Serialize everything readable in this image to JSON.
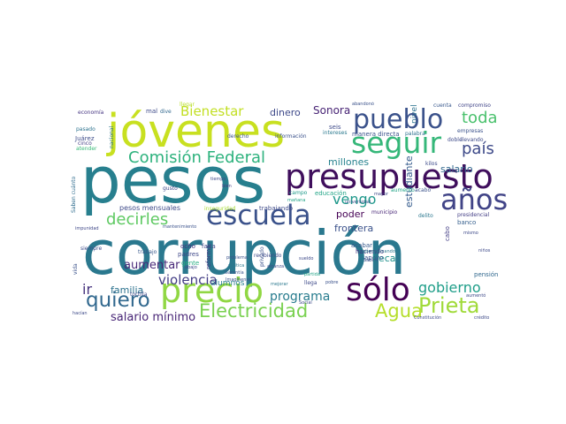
{
  "words": [
    {
      "text": "corrupción",
      "color": "#2a788e"
    },
    {
      "text": "pesos",
      "color": "#277f8e"
    },
    {
      "text": "jóvenes",
      "color": "#c8e020"
    },
    {
      "text": "presupuesto",
      "color": "#3f0e5c"
    },
    {
      "text": "precio",
      "color": "#90d743"
    },
    {
      "text": "pueblo",
      "color": "#3b528b"
    },
    {
      "text": "seguir",
      "color": "#35b779"
    },
    {
      "text": "escuela",
      "color": "#3b528b"
    },
    {
      "text": "años",
      "color": "#414487"
    },
    {
      "text": "sólo",
      "color": "#440154"
    },
    {
      "text": "quiero",
      "color": "#31688e"
    },
    {
      "text": "Prieta",
      "color": "#a0da39"
    },
    {
      "text": "Comisión Federal",
      "color": "#2db27d"
    },
    {
      "text": "Electricidad",
      "color": "#7ad151"
    },
    {
      "text": "Agua",
      "color": "#b5de2b"
    },
    {
      "text": "Bienestar",
      "color": "#c2df23"
    },
    {
      "text": "gobierno",
      "color": "#1f9e89"
    },
    {
      "text": "toda",
      "color": "#4ac16d"
    },
    {
      "text": "país",
      "color": "#3e4a89"
    },
    {
      "text": "decirles",
      "color": "#5ec962"
    },
    {
      "text": "vengo",
      "color": "#1f988b"
    },
    {
      "text": "violencia",
      "color": "#433e85"
    },
    {
      "text": "programa",
      "color": "#287c8e"
    },
    {
      "text": "ir",
      "color": "#46337e"
    },
    {
      "text": "familia",
      "color": "#2c728e"
    },
    {
      "text": "aumentar",
      "color": "#482878"
    },
    {
      "text": "salario mínimo",
      "color": "#482576"
    },
    {
      "text": "dinero",
      "color": "#3e4989"
    },
    {
      "text": "Sonora",
      "color": "#482475"
    },
    {
      "text": "salario",
      "color": "#31688e"
    },
    {
      "text": "millones",
      "color": "#26828e"
    },
    {
      "text": "frontera",
      "color": "#3b528b"
    },
    {
      "text": "poder",
      "color": "#440154"
    },
    {
      "text": "beca",
      "color": "#21918c"
    },
    {
      "text": "estudiante",
      "color": "#365c8d"
    },
    {
      "text": "pesos mensuales",
      "color": "#3e4a89"
    },
    {
      "text": "alumnos",
      "color": "#277f8e"
    },
    {
      "text": "manera directa",
      "color": "#3b528b"
    },
    {
      "text": "nivel",
      "color": "#2c728e"
    },
    {
      "text": "educación",
      "color": "#20a486"
    },
    {
      "text": "trabajando",
      "color": "#3e4a89"
    },
    {
      "text": "inseguridad",
      "color": "#a8db34"
    },
    {
      "text": "haciendo",
      "color": "#46307e"
    },
    {
      "text": "acabar",
      "color": "#38598c"
    },
    {
      "text": "apoyo",
      "color": "#3b528b"
    },
    {
      "text": "pensión",
      "color": "#31688e"
    },
    {
      "text": "falta",
      "color": "#404688"
    },
    {
      "text": "ocho",
      "color": "#46327e"
    },
    {
      "text": "padres",
      "color": "#3f4889"
    },
    {
      "text": "gente",
      "color": "#27ad81"
    },
    {
      "text": "reforma",
      "color": "#453781"
    },
    {
      "text": "cabo",
      "color": "#433e85"
    },
    {
      "text": "banco",
      "color": "#355f8d"
    },
    {
      "text": "municipio",
      "color": "#482677"
    },
    {
      "text": "delito",
      "color": "#2a778e"
    },
    {
      "text": "presidencial",
      "color": "#433e85"
    },
    {
      "text": "Saben cuánto",
      "color": "#2f6c8e"
    },
    {
      "text": "Juárez",
      "color": "#3e4c8a"
    },
    {
      "text": "pasado",
      "color": "#2c728e"
    },
    {
      "text": "cinco",
      "color": "#433d84"
    },
    {
      "text": "atender",
      "color": "#38b977"
    },
    {
      "text": "economía",
      "color": "#453581"
    },
    {
      "text": "nacional",
      "color": "#2b748e"
    },
    {
      "text": "mal",
      "color": "#3e4a89"
    },
    {
      "text": "dive",
      "color": "#31688e"
    },
    {
      "text": "llegar",
      "color": "#b8de29"
    },
    {
      "text": "derecho",
      "color": "#3b528b"
    },
    {
      "text": "información",
      "color": "#3b528b"
    },
    {
      "text": "seis",
      "color": "#3e4a89"
    },
    {
      "text": "intereses",
      "color": "#2a788e"
    },
    {
      "text": "palabra",
      "color": "#2d708e"
    },
    {
      "text": "compromiso",
      "color": "#404588"
    },
    {
      "text": "cuenta",
      "color": "#38588c"
    },
    {
      "text": "abandonó",
      "color": "#3b528b"
    },
    {
      "text": "empresas",
      "color": "#3b528b"
    },
    {
      "text": "doble",
      "color": "#3e4a89"
    },
    {
      "text": "llevando",
      "color": "#3e4a89"
    },
    {
      "text": "aumento",
      "color": "#20a386"
    },
    {
      "text": "kilos",
      "color": "#3e4c8a"
    },
    {
      "text": "acabó",
      "color": "#3b528b"
    },
    {
      "text": "campo",
      "color": "#1f9a8a"
    },
    {
      "text": "mañana",
      "color": "#20a386"
    },
    {
      "text": "gusto",
      "color": "#3e4a89"
    },
    {
      "text": "tiempo",
      "color": "#3e4a89"
    },
    {
      "text": "bien",
      "color": "#443983"
    },
    {
      "text": "impunidad",
      "color": "#3f4788"
    },
    {
      "text": "siempre",
      "color": "#3e4c8a"
    },
    {
      "text": "trabajo",
      "color": "#38598c"
    },
    {
      "text": "tortilla",
      "color": "#3e4a89"
    },
    {
      "text": "vida",
      "color": "#3b528b"
    },
    {
      "text": "hacían",
      "color": "#3e4a89"
    },
    {
      "text": "mantenimiento",
      "color": "#3b528b"
    },
    {
      "text": "abajo",
      "color": "#3e4a89"
    },
    {
      "text": "Garantía",
      "color": "#3b528b"
    },
    {
      "text": "problema",
      "color": "#3b528b"
    },
    {
      "text": "política",
      "color": "#2a788e"
    },
    {
      "text": "Imagínense",
      "color": "#3b528b"
    },
    {
      "text": "recibiendo",
      "color": "#3e4a89"
    },
    {
      "text": "privado",
      "color": "#3b528b"
    },
    {
      "text": "alcanza",
      "color": "#3e4a89"
    },
    {
      "text": "mejorar",
      "color": "#2a788e"
    },
    {
      "text": "sueldo",
      "color": "#3e4a89"
    },
    {
      "text": "llega",
      "color": "#3e4a89"
    },
    {
      "text": "pobre",
      "color": "#3b528b"
    },
    {
      "text": "partida",
      "color": "#20a386"
    },
    {
      "text": "Social",
      "color": "#3e4a89"
    },
    {
      "text": "Constitución",
      "color": "#3e4a89"
    },
    {
      "text": "aumentó",
      "color": "#3e4a89"
    },
    {
      "text": "crédito",
      "color": "#3e4a89"
    },
    {
      "text": "universidad",
      "color": "#3b528b"
    },
    {
      "text": "mayor",
      "color": "#3e4a89"
    },
    {
      "text": "mismo",
      "color": "#3e4a89"
    },
    {
      "text": "niños",
      "color": "#3e4a89"
    },
    {
      "text": "Saben",
      "color": "#3b528b"
    },
    {
      "text": "Sabenaplicando",
      "color": "#2a788e"
    }
  ]
}
